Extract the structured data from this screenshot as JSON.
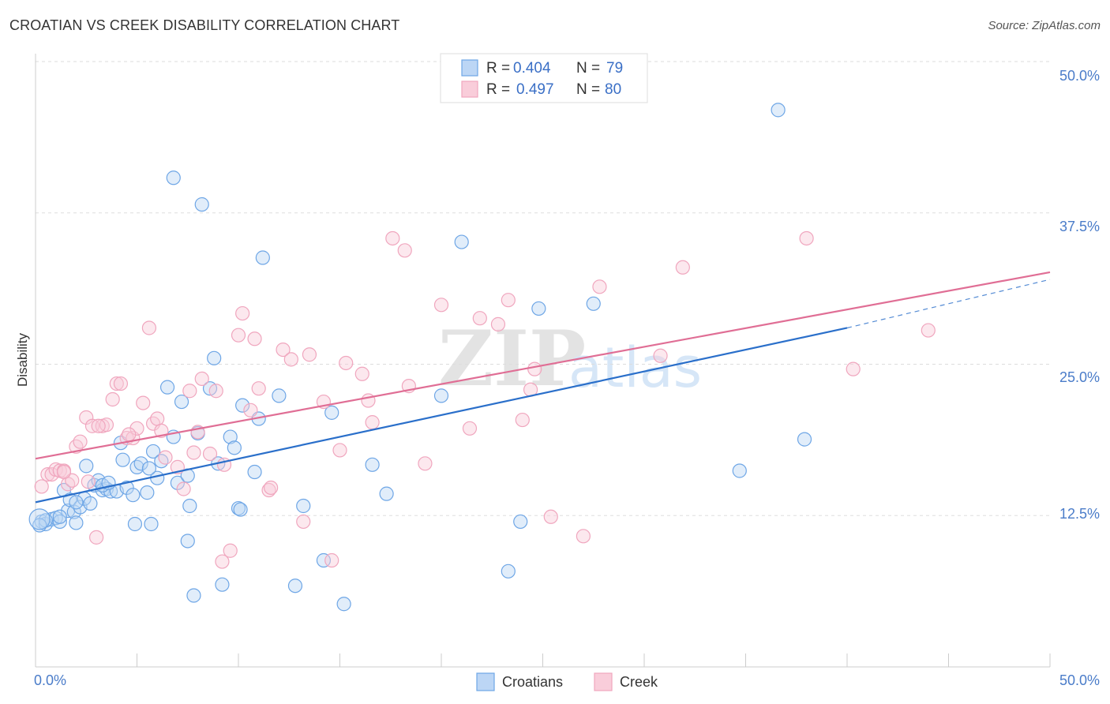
{
  "title": "CROATIAN VS CREEK DISABILITY CORRELATION CHART",
  "source": "Source: ZipAtlas.com",
  "watermark": {
    "zip": "ZIP",
    "atlas": "atlas"
  },
  "colors": {
    "blue": "#6ea6e6",
    "blue_line": "#2a6fca",
    "pink": "#f0a6be",
    "pink_line": "#e06e95",
    "tick": "#4a7cc9"
  },
  "legend": {
    "rows": [
      {
        "r_label": "R =",
        "r_value": "0.404",
        "n_label": "N =",
        "n_value": "79"
      },
      {
        "r_label": "R =",
        "r_value": "0.497",
        "n_label": "N =",
        "n_value": "80"
      }
    ]
  },
  "bottom_legend": [
    "Croatians",
    "Creek"
  ],
  "chart_data": {
    "type": "scatter",
    "title": "CROATIAN VS CREEK DISABILITY CORRELATION CHART",
    "xlabel": "",
    "ylabel": "Disability",
    "xlim": [
      0,
      50
    ],
    "ylim": [
      0,
      50
    ],
    "x_tick_labels": [
      "0.0%",
      "50.0%"
    ],
    "y_tick_labels": [
      "12.5%",
      "25.0%",
      "37.5%",
      "50.0%"
    ],
    "y_ticks": [
      12.5,
      25.0,
      37.5,
      50.0
    ],
    "grid": "horizontal dashed",
    "legend_placement": "top-center",
    "series": [
      {
        "name": "Croatians",
        "color": "#6ea6e6",
        "trend": {
          "x": [
            0,
            40
          ],
          "y": [
            13.6,
            28.0
          ],
          "dashed_to": [
            50,
            32.0
          ]
        },
        "points": [
          [
            0.3,
            12.0
          ],
          [
            0.5,
            11.8
          ],
          [
            0.8,
            12.2
          ],
          [
            1.0,
            12.3
          ],
          [
            1.2,
            12.0
          ],
          [
            1.4,
            14.6
          ],
          [
            1.6,
            12.9
          ],
          [
            1.7,
            13.8
          ],
          [
            1.9,
            12.8
          ],
          [
            2.0,
            11.9
          ],
          [
            2.2,
            13.2
          ],
          [
            2.4,
            13.9
          ],
          [
            2.5,
            16.6
          ],
          [
            2.7,
            13.5
          ],
          [
            2.9,
            15.0
          ],
          [
            3.1,
            15.4
          ],
          [
            3.3,
            14.6
          ],
          [
            3.5,
            14.7
          ],
          [
            3.7,
            14.5
          ],
          [
            4.0,
            14.5
          ],
          [
            4.2,
            18.5
          ],
          [
            4.3,
            17.1
          ],
          [
            4.5,
            14.8
          ],
          [
            4.8,
            14.2
          ],
          [
            5.0,
            16.5
          ],
          [
            5.2,
            16.8
          ],
          [
            5.5,
            14.4
          ],
          [
            5.8,
            17.8
          ],
          [
            6.0,
            15.6
          ],
          [
            6.2,
            17.0
          ],
          [
            6.5,
            23.1
          ],
          [
            6.8,
            19.0
          ],
          [
            7.0,
            15.2
          ],
          [
            7.2,
            21.9
          ],
          [
            7.5,
            15.8
          ],
          [
            7.6,
            13.3
          ],
          [
            7.8,
            5.9
          ],
          [
            8.0,
            19.3
          ],
          [
            8.2,
            38.2
          ],
          [
            8.6,
            23.0
          ],
          [
            8.8,
            25.5
          ],
          [
            9.0,
            16.8
          ],
          [
            9.2,
            6.8
          ],
          [
            9.6,
            19.0
          ],
          [
            9.8,
            18.1
          ],
          [
            10.0,
            13.1
          ],
          [
            10.2,
            21.6
          ],
          [
            10.8,
            16.1
          ],
          [
            11.0,
            20.5
          ],
          [
            11.2,
            33.8
          ],
          [
            12.0,
            22.4
          ],
          [
            12.8,
            6.7
          ],
          [
            13.2,
            13.3
          ],
          [
            14.2,
            8.8
          ],
          [
            14.6,
            21.0
          ],
          [
            15.2,
            5.2
          ],
          [
            16.6,
            16.7
          ],
          [
            17.3,
            14.3
          ],
          [
            20.0,
            22.4
          ],
          [
            21.0,
            35.1
          ],
          [
            23.9,
            12.0
          ],
          [
            24.8,
            29.6
          ],
          [
            27.5,
            30.0
          ],
          [
            34.7,
            16.2
          ],
          [
            36.6,
            46.0
          ],
          [
            37.9,
            18.8
          ],
          [
            3.3,
            15.0
          ],
          [
            2.0,
            13.6
          ],
          [
            1.2,
            12.4
          ],
          [
            0.5,
            12.1
          ],
          [
            6.8,
            40.4
          ],
          [
            7.5,
            10.4
          ],
          [
            4.9,
            11.8
          ],
          [
            5.7,
            11.8
          ],
          [
            5.6,
            16.4
          ],
          [
            10.1,
            13.0
          ],
          [
            23.3,
            7.9
          ],
          [
            3.6,
            15.2
          ],
          [
            0.2,
            11.7
          ]
        ],
        "large_points": [
          [
            0.2,
            12.2
          ]
        ]
      },
      {
        "name": "Creek",
        "color": "#f0a6be",
        "trend": {
          "x": [
            0,
            50
          ],
          "y": [
            17.2,
            32.6
          ]
        },
        "points": [
          [
            0.3,
            14.9
          ],
          [
            0.6,
            15.9
          ],
          [
            0.8,
            15.9
          ],
          [
            1.0,
            16.3
          ],
          [
            1.2,
            16.2
          ],
          [
            1.4,
            16.2
          ],
          [
            1.6,
            15.1
          ],
          [
            1.8,
            15.4
          ],
          [
            2.0,
            18.2
          ],
          [
            2.2,
            18.6
          ],
          [
            2.5,
            20.6
          ],
          [
            2.8,
            19.9
          ],
          [
            3.0,
            10.7
          ],
          [
            3.3,
            19.9
          ],
          [
            3.5,
            20.0
          ],
          [
            3.8,
            22.1
          ],
          [
            4.0,
            23.4
          ],
          [
            4.2,
            23.4
          ],
          [
            4.5,
            18.9
          ],
          [
            4.8,
            18.9
          ],
          [
            5.0,
            19.7
          ],
          [
            5.3,
            21.8
          ],
          [
            5.6,
            28.0
          ],
          [
            5.8,
            20.1
          ],
          [
            6.0,
            20.5
          ],
          [
            6.4,
            17.3
          ],
          [
            7.0,
            16.5
          ],
          [
            7.3,
            14.7
          ],
          [
            7.6,
            22.8
          ],
          [
            7.8,
            17.7
          ],
          [
            8.2,
            23.8
          ],
          [
            8.6,
            17.6
          ],
          [
            8.9,
            22.8
          ],
          [
            9.2,
            8.7
          ],
          [
            9.6,
            9.6
          ],
          [
            10.0,
            27.4
          ],
          [
            10.2,
            29.2
          ],
          [
            10.6,
            21.2
          ],
          [
            10.8,
            27.1
          ],
          [
            11.0,
            23.0
          ],
          [
            11.5,
            14.6
          ],
          [
            12.2,
            26.2
          ],
          [
            12.6,
            25.4
          ],
          [
            13.2,
            12.0
          ],
          [
            13.5,
            25.8
          ],
          [
            14.2,
            21.9
          ],
          [
            14.6,
            8.8
          ],
          [
            15.0,
            17.9
          ],
          [
            15.3,
            25.1
          ],
          [
            16.1,
            24.2
          ],
          [
            16.4,
            22.0
          ],
          [
            16.6,
            20.2
          ],
          [
            17.6,
            35.4
          ],
          [
            18.2,
            34.4
          ],
          [
            18.4,
            23.2
          ],
          [
            19.2,
            16.8
          ],
          [
            20.0,
            29.9
          ],
          [
            21.4,
            19.7
          ],
          [
            21.9,
            28.8
          ],
          [
            22.8,
            28.3
          ],
          [
            23.3,
            30.3
          ],
          [
            24.0,
            20.4
          ],
          [
            24.4,
            22.9
          ],
          [
            24.6,
            24.6
          ],
          [
            25.4,
            12.4
          ],
          [
            27.0,
            10.8
          ],
          [
            27.8,
            31.4
          ],
          [
            30.8,
            25.7
          ],
          [
            31.9,
            33.0
          ],
          [
            38.0,
            35.4
          ],
          [
            40.3,
            24.6
          ],
          [
            44.0,
            27.8
          ],
          [
            6.2,
            19.5
          ],
          [
            4.6,
            19.2
          ],
          [
            3.1,
            19.9
          ],
          [
            8.0,
            19.4
          ],
          [
            11.6,
            14.8
          ],
          [
            1.4,
            16.1
          ],
          [
            2.6,
            15.3
          ],
          [
            9.3,
            16.7
          ]
        ]
      }
    ]
  }
}
